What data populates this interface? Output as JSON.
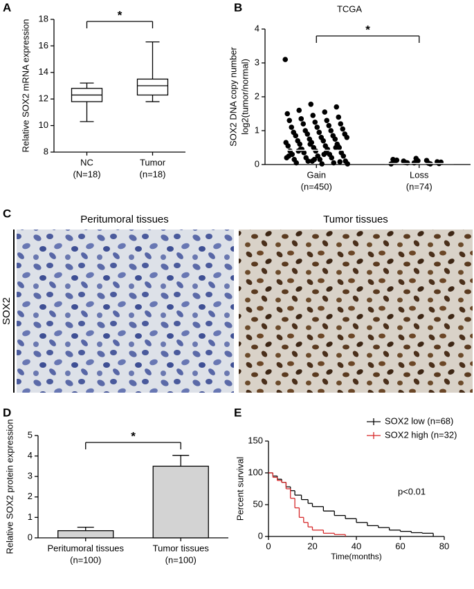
{
  "panels": [
    "A",
    "B",
    "C",
    "D",
    "E"
  ],
  "images": {
    "left_title": "Peritumoral  tissues",
    "right_title": "Tumor  tissues",
    "row_label": "SOX2"
  },
  "chart_data": [
    {
      "type": "box",
      "ylabel": "Relative SOX2 mRNA expression",
      "annotation": "*",
      "categories": [
        "NC",
        "Tumor"
      ],
      "category_notes": [
        "(N=18)",
        "(n=18)"
      ],
      "boxes": [
        {
          "min": 10.3,
          "q1": 11.8,
          "median": 12.3,
          "q3": 12.8,
          "max": 13.2
        },
        {
          "min": 11.8,
          "q1": 12.3,
          "median": 13.0,
          "q3": 13.5,
          "max": 16.3
        }
      ],
      "ylim": [
        8,
        18
      ],
      "yticks": [
        8,
        10,
        12,
        14,
        16,
        18
      ]
    },
    {
      "type": "scatter",
      "title": "TCGA",
      "ylabel": [
        "SOX2 DNA copy number",
        "log2(tumor/normal)"
      ],
      "annotation": "*",
      "categories": [
        "Gain",
        "Loss"
      ],
      "category_notes": [
        "(n=450)",
        "(n=74)"
      ],
      "points": [
        [
          3.1,
          1.78,
          1.7,
          1.6,
          1.55,
          1.5,
          1.45,
          1.4,
          1.35,
          1.3,
          1.3,
          1.25,
          1.2,
          1.2,
          1.15,
          1.1,
          1.1,
          1.05,
          1.0,
          1.0,
          0.95,
          0.95,
          0.9,
          0.9,
          0.85,
          0.85,
          0.8,
          0.8,
          0.75,
          0.75,
          0.7,
          0.7,
          0.65,
          0.65,
          0.6,
          0.6,
          0.55,
          0.55,
          0.5,
          0.5,
          0.45,
          0.45,
          0.4,
          0.4,
          0.35,
          0.35,
          0.3,
          0.3,
          0.25,
          0.25,
          0.2,
          0.2,
          0.15,
          0.15,
          0.1,
          0.1,
          0.05,
          0.05,
          0.02,
          0.02,
          0.6,
          0.5,
          0.4,
          0.3,
          0.2,
          0.1,
          0.55,
          0.45,
          0.35,
          0.25,
          0.15,
          0.08
        ],
        [
          0.02,
          0.05,
          0.08,
          0.1,
          0.12,
          0.15,
          0.18,
          0.03,
          0.06,
          0.04,
          0.09,
          0.11,
          0.07,
          0.05,
          0.02,
          0.13
        ]
      ],
      "means": [
        0.42,
        0.03
      ],
      "ylim": [
        0,
        4
      ],
      "yticks": [
        0,
        1,
        2,
        3,
        4
      ],
      "color": "#000000"
    },
    {
      "type": "bar",
      "ylabel": "Relative SOX2 protein expression",
      "annotation": "*",
      "categories": [
        "Peritumoral tissues",
        "Tumor tissues"
      ],
      "category_notes": [
        "(n=100)",
        "(n=100)"
      ],
      "values": [
        0.35,
        3.5
      ],
      "errors": [
        0.17,
        0.53
      ],
      "color": "#d3d3d3",
      "ylim": [
        0,
        5
      ],
      "yticks": [
        0,
        1,
        2,
        3,
        4,
        5
      ]
    },
    {
      "type": "line",
      "xlabel": "Time(months)",
      "ylabel": "Percent survival",
      "annotation": "p<0.01",
      "series": [
        {
          "name": "SOX2 low  (n=68)",
          "color": "#000000",
          "x": [
            0,
            2,
            4,
            6,
            8,
            10,
            12,
            15,
            18,
            20,
            25,
            30,
            35,
            40,
            45,
            50,
            55,
            60,
            65,
            70,
            75
          ],
          "values": [
            100,
            95,
            90,
            85,
            78,
            72,
            65,
            58,
            52,
            47,
            40,
            33,
            28,
            22,
            17,
            14,
            10,
            8,
            6,
            5,
            0
          ]
        },
        {
          "name": "SOX2 high (n=32)",
          "color": "#d62728",
          "x": [
            0,
            2,
            4,
            6,
            8,
            10,
            12,
            14,
            16,
            18,
            20,
            25,
            30,
            35
          ],
          "values": [
            100,
            93,
            88,
            85,
            75,
            60,
            45,
            30,
            22,
            15,
            10,
            5,
            3,
            0
          ]
        }
      ],
      "xlim": [
        0,
        80
      ],
      "xticks": [
        0,
        20,
        40,
        60,
        80
      ],
      "ylim": [
        0,
        150
      ],
      "yticks": [
        0,
        50,
        100,
        150
      ]
    }
  ]
}
